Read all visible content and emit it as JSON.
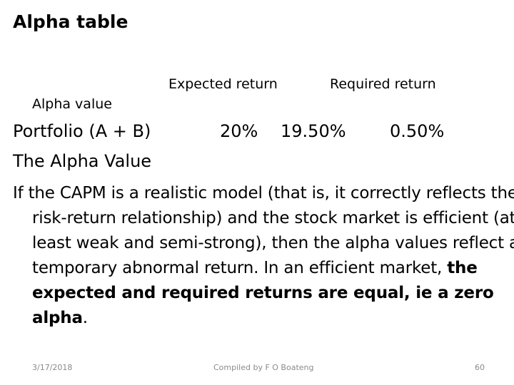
{
  "slide": {
    "title": "Alpha table",
    "table": {
      "header_expected": "Expected return",
      "header_required": "Required return",
      "header_alpha": "Alpha value",
      "row_label": "Portfolio (A + B)",
      "row_expected": "20%",
      "row_required": "19.50%",
      "row_alpha": "0.50%"
    },
    "heading": "The Alpha Value",
    "paragraph": {
      "part1": "If the CAPM is a realistic model (that is, it correctly reflects the risk-return relationship) and the stock market is efficient (at least weak and semi-strong), then the alpha values reflect a temporary abnormal return. In an efficient market, ",
      "bold": "the expected and required returns are equal, ie a zero alpha",
      "part2": "."
    },
    "footer": {
      "date": "3/17/2018",
      "credit": "Compiled by F O Boateng",
      "page_number": "60"
    }
  }
}
